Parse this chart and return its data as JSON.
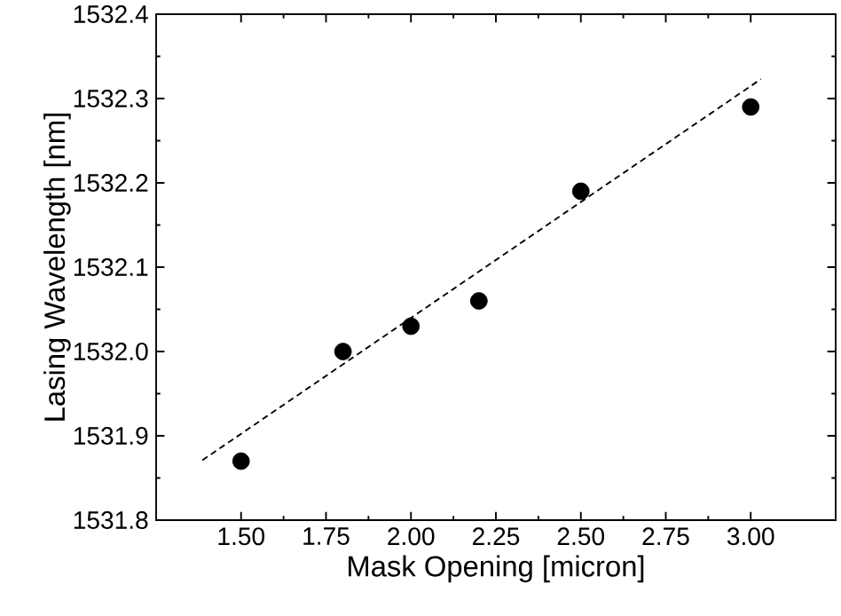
{
  "chart_data": {
    "type": "scatter",
    "xlabel": "Mask Opening [micron]",
    "ylabel": "Lasing Wavelength [nm]",
    "xlim": [
      1.25,
      3.25
    ],
    "xticks": [
      {
        "value": 1.5,
        "label": "1.50"
      },
      {
        "value": 1.75,
        "label": "1.75"
      },
      {
        "value": 2.0,
        "label": "2.00"
      },
      {
        "value": 2.25,
        "label": "2.25"
      },
      {
        "value": 2.5,
        "label": "2.50"
      },
      {
        "value": 2.75,
        "label": "2.75"
      },
      {
        "value": 3.0,
        "label": "3.00"
      }
    ],
    "ylim": [
      1531.8,
      1532.4
    ],
    "yticks": [
      {
        "value": 1531.8,
        "label": "1531.8"
      },
      {
        "value": 1531.9,
        "label": "1531.9"
      },
      {
        "value": 1532.0,
        "label": "1532.0"
      },
      {
        "value": 1532.1,
        "label": "1532.1"
      },
      {
        "value": 1532.2,
        "label": "1532.2"
      },
      {
        "value": 1532.3,
        "label": "1532.3"
      },
      {
        "value": 1532.4,
        "label": "1532.4"
      }
    ],
    "marker": "circle",
    "grid": false,
    "series": [
      {
        "color": "#000000",
        "x": [
          1.5,
          1.8,
          2.0,
          2.2,
          2.5,
          3.0
        ],
        "values": [
          1531.87,
          1532.0,
          1532.03,
          1532.06,
          1532.19,
          1532.29
        ]
      },
      {
        "type": "line",
        "line_style": "dashed",
        "marker": "none",
        "color": "#000000",
        "x": [
          1.386,
          3.03
        ],
        "values": [
          1531.871,
          1532.323
        ]
      }
    ]
  }
}
